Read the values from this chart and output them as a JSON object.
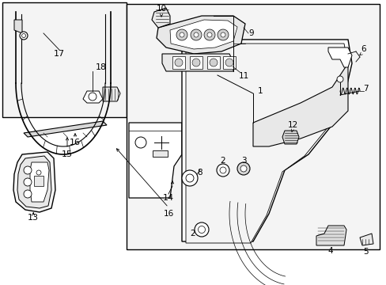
{
  "background_color": "#ffffff",
  "figsize": [
    4.89,
    3.6
  ],
  "dpi": 100,
  "gray_fill": "#e8e8e8",
  "light_fill": "#f4f4f4",
  "med_fill": "#d0d0d0"
}
